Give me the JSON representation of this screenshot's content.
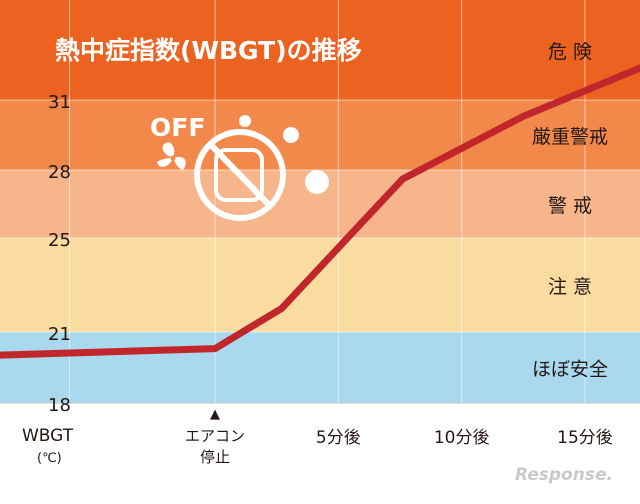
{
  "title": "熱中症指数(WBGT)の推移",
  "watermark": "Response.",
  "illustration": {
    "off_label": "OFF",
    "icon": "aircon-fan-off-icon"
  },
  "colors": {
    "line": "#c0262c",
    "danger": "#ec6220",
    "severe_warning": "#f2894a",
    "warning": "#f7b58c",
    "caution": "#fbdca0",
    "nearly_safe": "#a9d8ef",
    "axis_bg": "#ffffff",
    "text": "#231815"
  },
  "chart_data": {
    "type": "line",
    "title": "熱中症指数(WBGT)の推移",
    "xlabel": "",
    "ylabel": "WBGT (℃)",
    "y_axis_label": "WBGT",
    "y_axis_unit": "(℃)",
    "ylim": [
      18,
      33
    ],
    "yticks": [
      18,
      21,
      25,
      28,
      31
    ],
    "x_ticks": [
      {
        "x": 0,
        "label": "エアコン\n停止",
        "marker": "▲"
      },
      {
        "x": 5,
        "label": "5分後"
      },
      {
        "x": 10,
        "label": "10分後"
      },
      {
        "x": 15,
        "label": "15分後"
      }
    ],
    "xlim": [
      -9.5,
      19
    ],
    "bands": [
      {
        "label": "ほぼ安全",
        "from": 18,
        "to": 21,
        "color": "#a9d8ef"
      },
      {
        "label": "注 意",
        "from": 21,
        "to": 25,
        "color": "#fbdca0"
      },
      {
        "label": "警 戒",
        "from": 25,
        "to": 28,
        "color": "#f7b58c"
      },
      {
        "label": "厳重警戒",
        "from": 28,
        "to": 31,
        "color": "#f2894a"
      },
      {
        "label": "危 険",
        "from": 31,
        "to": 33,
        "color": "#ec6220"
      }
    ],
    "series": [
      {
        "values": [
          {
            "x": -9.5,
            "y": 20.0
          },
          {
            "x": 0,
            "y": 20.3
          },
          {
            "x": 2.7,
            "y": 22.0
          },
          {
            "x": 7.6,
            "y": 27.6
          },
          {
            "x": 12.5,
            "y": 30.3
          },
          {
            "x": 19,
            "y": 32.0
          }
        ]
      }
    ],
    "grid": true
  }
}
